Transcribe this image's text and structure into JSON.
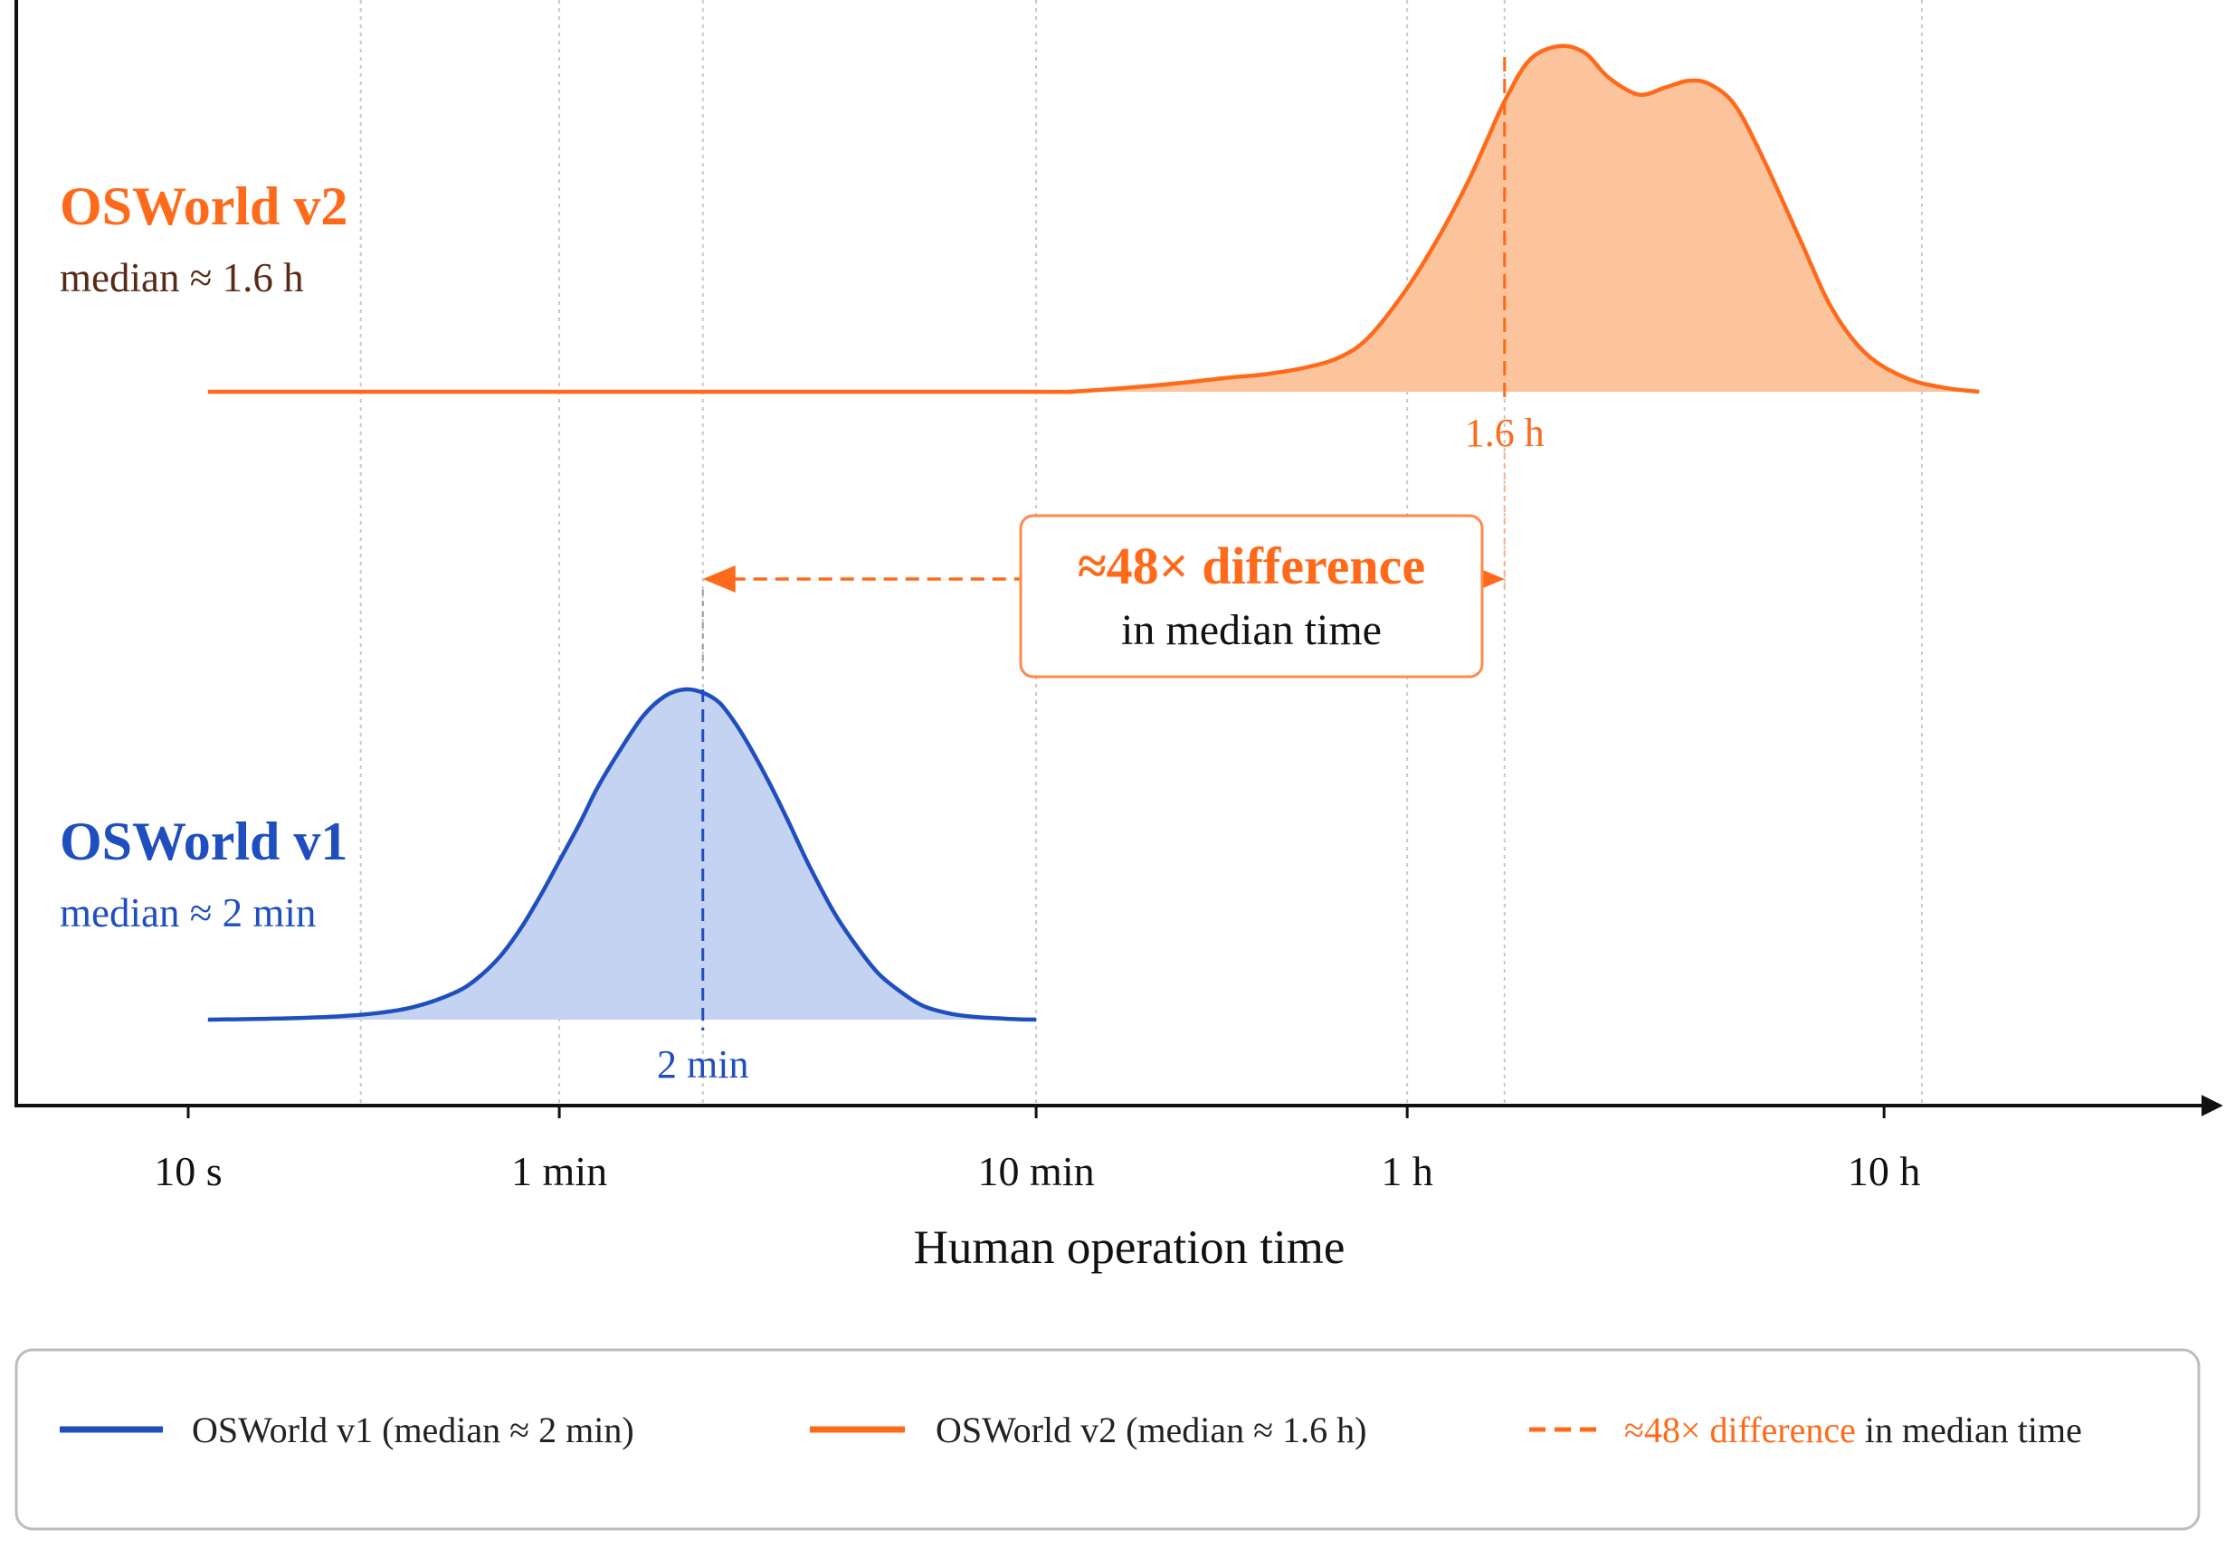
{
  "chart_data": {
    "type": "area",
    "xlabel": "Human operation time",
    "x_scale": "log",
    "x_unit": "seconds",
    "x_ticks": [
      {
        "value": 10,
        "label": "10 s"
      },
      {
        "value": 60,
        "label": "1 min"
      },
      {
        "value": 600,
        "label": "10 min"
      },
      {
        "value": 3600,
        "label": "1 h"
      },
      {
        "value": 36000,
        "label": "10 h"
      }
    ],
    "xlim": [
      6,
      60000
    ],
    "grid": {
      "vertical": true,
      "values": [
        23,
        60,
        120,
        600,
        3600,
        5760,
        43200
      ]
    },
    "series": [
      {
        "name": "OSWorld v1",
        "title": "OSWorld v1",
        "subtitle": "median ≈ 2 min",
        "legend_label": "OSWorld v1 (median ≈ 2 min)",
        "color": "#1f4fbf",
        "fill": "#c3d3f1",
        "median": 120,
        "median_label": "2 min",
        "x": [
          11,
          15,
          20,
          25,
          30,
          36,
          40,
          45,
          50,
          55,
          60,
          66,
          72,
          80,
          90,
          100,
          110,
          120,
          130,
          140,
          150,
          165,
          180,
          200,
          225,
          250,
          280,
          315,
          350,
          400,
          450,
          500,
          550,
          600
        ],
        "y": [
          0.0,
          0.003,
          0.009,
          0.02,
          0.04,
          0.08,
          0.12,
          0.19,
          0.28,
          0.38,
          0.48,
          0.59,
          0.7,
          0.81,
          0.92,
          0.98,
          1.0,
          0.99,
          0.96,
          0.9,
          0.83,
          0.72,
          0.61,
          0.47,
          0.33,
          0.23,
          0.14,
          0.08,
          0.04,
          0.017,
          0.008,
          0.004,
          0.001,
          0.0
        ]
      },
      {
        "name": "OSWorld v2",
        "title": "OSWorld v2",
        "subtitle": "median ≈ 1.6 h",
        "legend_label": "OSWorld v2 (median ≈ 1.6 h)",
        "color": "#ff6a1a",
        "fill": "#fbc49d",
        "median": 5760,
        "median_label": "1.6 h",
        "x": [
          11,
          100,
          600,
          700,
          900,
          1200,
          1500,
          1800,
          2200,
          2600,
          3000,
          3600,
          4200,
          4800,
          5300,
          5760,
          6500,
          7500,
          8500,
          9500,
          11000,
          12500,
          14000,
          15500,
          17500,
          20000,
          24000,
          28000,
          33000,
          40000,
          48000,
          57000
        ],
        "y": [
          0.0,
          0.0,
          0.0,
          0.0,
          0.01,
          0.025,
          0.04,
          0.05,
          0.07,
          0.1,
          0.16,
          0.3,
          0.45,
          0.6,
          0.73,
          0.84,
          0.96,
          1.0,
          0.98,
          0.91,
          0.86,
          0.88,
          0.9,
          0.89,
          0.83,
          0.68,
          0.44,
          0.24,
          0.11,
          0.04,
          0.012,
          0.0
        ]
      }
    ],
    "annotation": {
      "headline": "≈48× difference",
      "detail": "in median time",
      "from": 120,
      "to": 5760,
      "color": "#ff6a1a"
    },
    "legend": {
      "position": "bottom",
      "third_prefix": "≈48× difference",
      "third_suffix": " in median time",
      "third_color": "#ff6a1a"
    }
  }
}
